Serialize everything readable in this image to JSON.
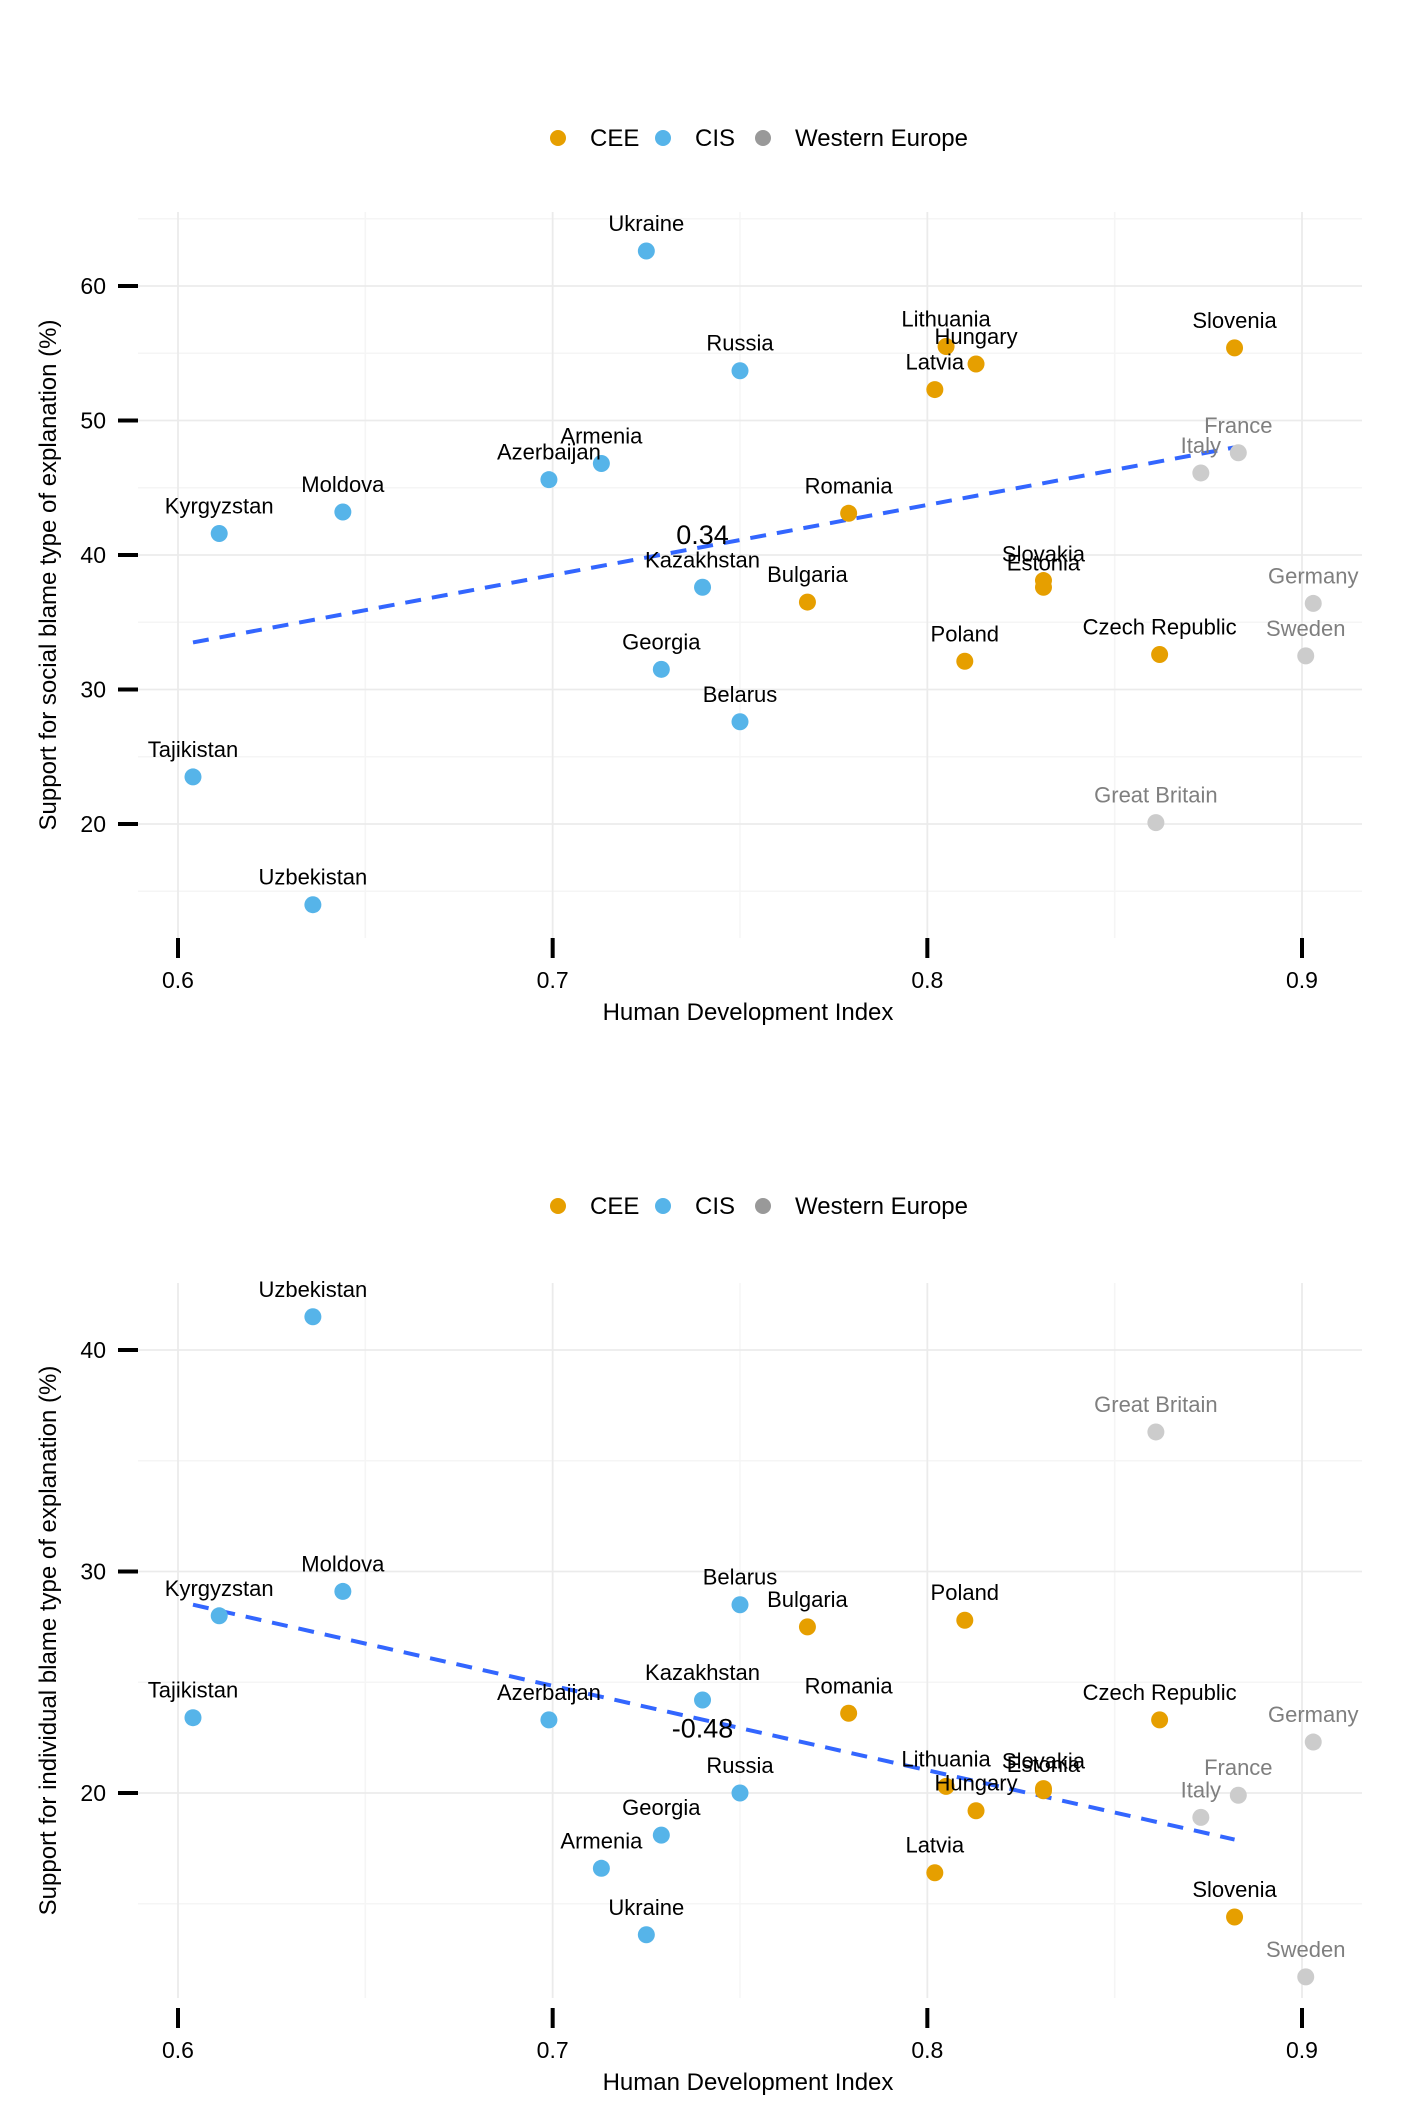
{
  "legend": {
    "items": [
      {
        "label": "CEE",
        "color": "#E69F00"
      },
      {
        "label": "CIS",
        "color": "#56B4E9"
      },
      {
        "label": "Western Europe",
        "color": "#999999"
      }
    ]
  },
  "group_colors": {
    "CEE": {
      "point": "#E69F00",
      "text": "#000000"
    },
    "CIS": {
      "point": "#56B4E9",
      "text": "#000000"
    },
    "Western Europe": {
      "point": "#CCCCCC",
      "text": "#7F7F7F"
    }
  },
  "trend_color": "#3366FF",
  "chart_data": [
    {
      "type": "scatter",
      "xlabel": "Human Development Index",
      "ylabel": "Support for social blame type of explanation (%)",
      "xlim": [
        0.6,
        0.9
      ],
      "ylim": [
        10,
        65
      ],
      "xticks": [
        0.6,
        0.7,
        0.8,
        0.9
      ],
      "yticks": [
        20,
        30,
        40,
        50,
        60
      ],
      "xtick_labels": [
        "0.6",
        "0.7",
        "0.8",
        "0.9"
      ],
      "ytick_labels": [
        "20",
        "30",
        "40",
        "50",
        "60"
      ],
      "grid": true,
      "legend_position": "top",
      "correlation_label": "0.34",
      "correlation_at": {
        "x": 0.74,
        "y": 40.8
      },
      "trend_line": {
        "x": [
          0.604,
          0.882
        ],
        "y": [
          33.5,
          48
        ]
      },
      "points": [
        {
          "country": "Ukraine",
          "group": "CIS",
          "x": 0.725,
          "y": 62.6
        },
        {
          "country": "Russia",
          "group": "CIS",
          "x": 0.75,
          "y": 53.7
        },
        {
          "country": "Armenia",
          "group": "CIS",
          "x": 0.713,
          "y": 46.8
        },
        {
          "country": "Azerbaijan",
          "group": "CIS",
          "x": 0.699,
          "y": 45.6
        },
        {
          "country": "Moldova",
          "group": "CIS",
          "x": 0.644,
          "y": 43.2
        },
        {
          "country": "Kyrgyzstan",
          "group": "CIS",
          "x": 0.611,
          "y": 41.6
        },
        {
          "country": "Kazakhstan",
          "group": "CIS",
          "x": 0.74,
          "y": 37.6
        },
        {
          "country": "Georgia",
          "group": "CIS",
          "x": 0.729,
          "y": 31.5
        },
        {
          "country": "Belarus",
          "group": "CIS",
          "x": 0.75,
          "y": 27.6
        },
        {
          "country": "Tajikistan",
          "group": "CIS",
          "x": 0.604,
          "y": 23.5
        },
        {
          "country": "Uzbekistan",
          "group": "CIS",
          "x": 0.636,
          "y": 14.0
        },
        {
          "country": "Lithuania",
          "group": "CEE",
          "x": 0.805,
          "y": 55.5
        },
        {
          "country": "Hungary",
          "group": "CEE",
          "x": 0.813,
          "y": 54.2
        },
        {
          "country": "Latvia",
          "group": "CEE",
          "x": 0.802,
          "y": 52.3
        },
        {
          "country": "Slovenia",
          "group": "CEE",
          "x": 0.882,
          "y": 55.4
        },
        {
          "country": "Romania",
          "group": "CEE",
          "x": 0.779,
          "y": 43.1
        },
        {
          "country": "Slovakia",
          "group": "CEE",
          "x": 0.831,
          "y": 38.1
        },
        {
          "country": "Estonia",
          "group": "CEE",
          "x": 0.831,
          "y": 37.6
        },
        {
          "country": "Bulgaria",
          "group": "CEE",
          "x": 0.768,
          "y": 36.5
        },
        {
          "country": "Poland",
          "group": "CEE",
          "x": 0.81,
          "y": 32.1
        },
        {
          "country": "Czech Republic",
          "group": "CEE",
          "x": 0.862,
          "y": 32.6
        },
        {
          "country": "France",
          "group": "Western Europe",
          "x": 0.883,
          "y": 47.6
        },
        {
          "country": "Italy",
          "group": "Western Europe",
          "x": 0.873,
          "y": 46.1
        },
        {
          "country": "Germany",
          "group": "Western Europe",
          "x": 0.903,
          "y": 36.4
        },
        {
          "country": "Sweden",
          "group": "Western Europe",
          "x": 0.901,
          "y": 32.5
        },
        {
          "country": "Great Britain",
          "group": "Western Europe",
          "x": 0.861,
          "y": 20.1
        }
      ]
    },
    {
      "type": "scatter",
      "xlabel": "Human Development Index",
      "ylabel": "Support for individual blame type of explanation (%)",
      "xlim": [
        0.6,
        0.9
      ],
      "ylim": [
        10,
        43
      ],
      "xticks": [
        0.6,
        0.7,
        0.8,
        0.9
      ],
      "yticks": [
        20,
        30,
        40
      ],
      "xtick_labels": [
        "0.6",
        "0.7",
        "0.8",
        "0.9"
      ],
      "ytick_labels": [
        "20",
        "30",
        "40"
      ],
      "grid": true,
      "legend_position": "top",
      "correlation_label": "-0.48",
      "correlation_at": {
        "x": 0.74,
        "y": 22.5
      },
      "trend_line": {
        "x": [
          0.604,
          0.882
        ],
        "y": [
          28.5,
          17.9
        ]
      },
      "points": [
        {
          "country": "Uzbekistan",
          "group": "CIS",
          "x": 0.636,
          "y": 41.5
        },
        {
          "country": "Moldova",
          "group": "CIS",
          "x": 0.644,
          "y": 29.1
        },
        {
          "country": "Kyrgyzstan",
          "group": "CIS",
          "x": 0.611,
          "y": 28.0
        },
        {
          "country": "Tajikistan",
          "group": "CIS",
          "x": 0.604,
          "y": 23.4
        },
        {
          "country": "Azerbaijan",
          "group": "CIS",
          "x": 0.699,
          "y": 23.3
        },
        {
          "country": "Belarus",
          "group": "CIS",
          "x": 0.75,
          "y": 28.5
        },
        {
          "country": "Kazakhstan",
          "group": "CIS",
          "x": 0.74,
          "y": 24.2
        },
        {
          "country": "Russia",
          "group": "CIS",
          "x": 0.75,
          "y": 20.0
        },
        {
          "country": "Georgia",
          "group": "CIS",
          "x": 0.729,
          "y": 18.1
        },
        {
          "country": "Armenia",
          "group": "CIS",
          "x": 0.713,
          "y": 16.6
        },
        {
          "country": "Ukraine",
          "group": "CIS",
          "x": 0.725,
          "y": 13.6
        },
        {
          "country": "Bulgaria",
          "group": "CEE",
          "x": 0.768,
          "y": 27.5
        },
        {
          "country": "Poland",
          "group": "CEE",
          "x": 0.81,
          "y": 27.8
        },
        {
          "country": "Romania",
          "group": "CEE",
          "x": 0.779,
          "y": 23.6
        },
        {
          "country": "Czech Republic",
          "group": "CEE",
          "x": 0.862,
          "y": 23.3
        },
        {
          "country": "Lithuania",
          "group": "CEE",
          "x": 0.805,
          "y": 20.3
        },
        {
          "country": "Slovakia",
          "group": "CEE",
          "x": 0.831,
          "y": 20.2
        },
        {
          "country": "Estonia",
          "group": "CEE",
          "x": 0.831,
          "y": 20.1
        },
        {
          "country": "Hungary",
          "group": "CEE",
          "x": 0.813,
          "y": 19.2
        },
        {
          "country": "Latvia",
          "group": "CEE",
          "x": 0.802,
          "y": 16.4
        },
        {
          "country": "Slovenia",
          "group": "CEE",
          "x": 0.882,
          "y": 14.4
        },
        {
          "country": "Great Britain",
          "group": "Western Europe",
          "x": 0.861,
          "y": 36.3
        },
        {
          "country": "Germany",
          "group": "Western Europe",
          "x": 0.903,
          "y": 22.3
        },
        {
          "country": "France",
          "group": "Western Europe",
          "x": 0.883,
          "y": 19.9
        },
        {
          "country": "Italy",
          "group": "Western Europe",
          "x": 0.873,
          "y": 18.9
        },
        {
          "country": "Sweden",
          "group": "Western Europe",
          "x": 0.901,
          "y": 11.7
        }
      ]
    }
  ]
}
